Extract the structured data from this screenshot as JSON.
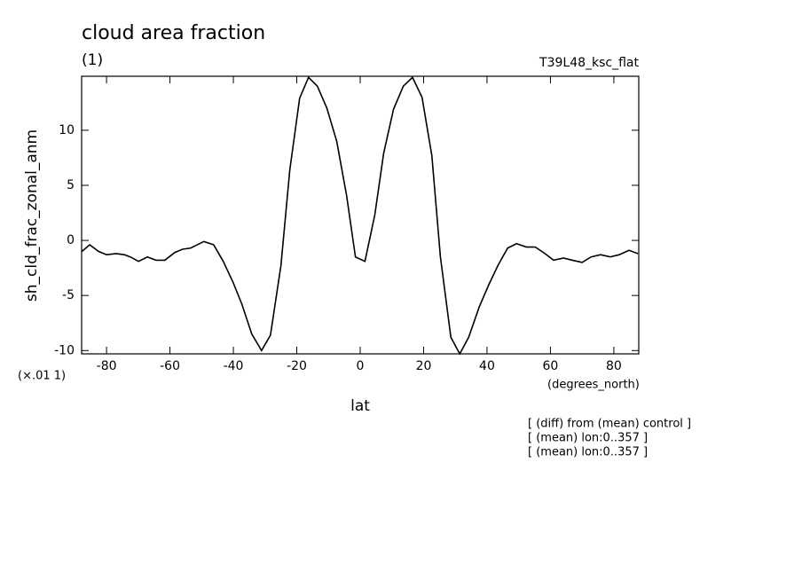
{
  "chart_data": {
    "type": "line",
    "title": "cloud area fraction",
    "subtitle": "(1)",
    "run_label": "T39L48_ksc_flat",
    "ylabel": "sh_cld_frac_zonal_anm",
    "y_unit": "(×.01 1)",
    "xlabel": "lat",
    "x_unit": "(degrees_north)",
    "notes": [
      "[ (diff) from (mean) control ]",
      "[ (mean) lon:0..357 ]",
      "[ (mean) lon:0..357 ]"
    ],
    "xlim": [
      -87.86,
      87.86
    ],
    "ylim": [
      -10.3,
      14.9
    ],
    "xticks": [
      -80,
      -60,
      -40,
      -20,
      0,
      20,
      40,
      60,
      80
    ],
    "yticks": [
      -10,
      -5,
      0,
      5,
      10
    ],
    "color": "#000000",
    "x": [
      -87.8,
      -85.3,
      -82.5,
      -80.0,
      -77.0,
      -74.4,
      -72.5,
      -69.9,
      -67.1,
      -64.4,
      -61.6,
      -58.5,
      -56.0,
      -53.5,
      -49.3,
      -46.2,
      -43.2,
      -40.1,
      -37.3,
      -34.2,
      -31.1,
      -28.3,
      -25.0,
      -22.2,
      -19.1,
      -16.3,
      -13.5,
      -10.5,
      -7.4,
      -4.3,
      -1.5,
      1.5,
      4.6,
      7.4,
      10.5,
      13.6,
      16.5,
      19.5,
      22.6,
      25.3,
      28.6,
      31.4,
      34.2,
      37.6,
      40.6,
      43.4,
      46.5,
      49.3,
      52.4,
      55.2,
      58.3,
      61.0,
      64.1,
      66.9,
      70.0,
      72.8,
      75.8,
      78.9,
      81.7,
      84.8,
      87.6
    ],
    "values": [
      -1.0,
      -0.4,
      -1.0,
      -1.3,
      -1.2,
      -1.3,
      -1.5,
      -1.9,
      -1.5,
      -1.8,
      -1.8,
      -1.1,
      -0.8,
      -0.7,
      -0.1,
      -0.4,
      -1.9,
      -3.8,
      -5.8,
      -8.5,
      -10.0,
      -8.6,
      -2.3,
      6.4,
      12.9,
      14.8,
      14.0,
      12.0,
      9.0,
      4.1,
      -1.5,
      -1.9,
      2.3,
      7.9,
      11.9,
      14.0,
      14.8,
      13.0,
      7.7,
      -1.5,
      -8.8,
      -10.3,
      -8.8,
      -6.0,
      -4.0,
      -2.3,
      -0.7,
      -0.3,
      -0.6,
      -0.6,
      -1.2,
      -1.8,
      -1.6,
      -1.8,
      -2.0,
      -1.5,
      -1.3,
      -1.5,
      -1.3,
      -0.9,
      -1.2
    ]
  }
}
